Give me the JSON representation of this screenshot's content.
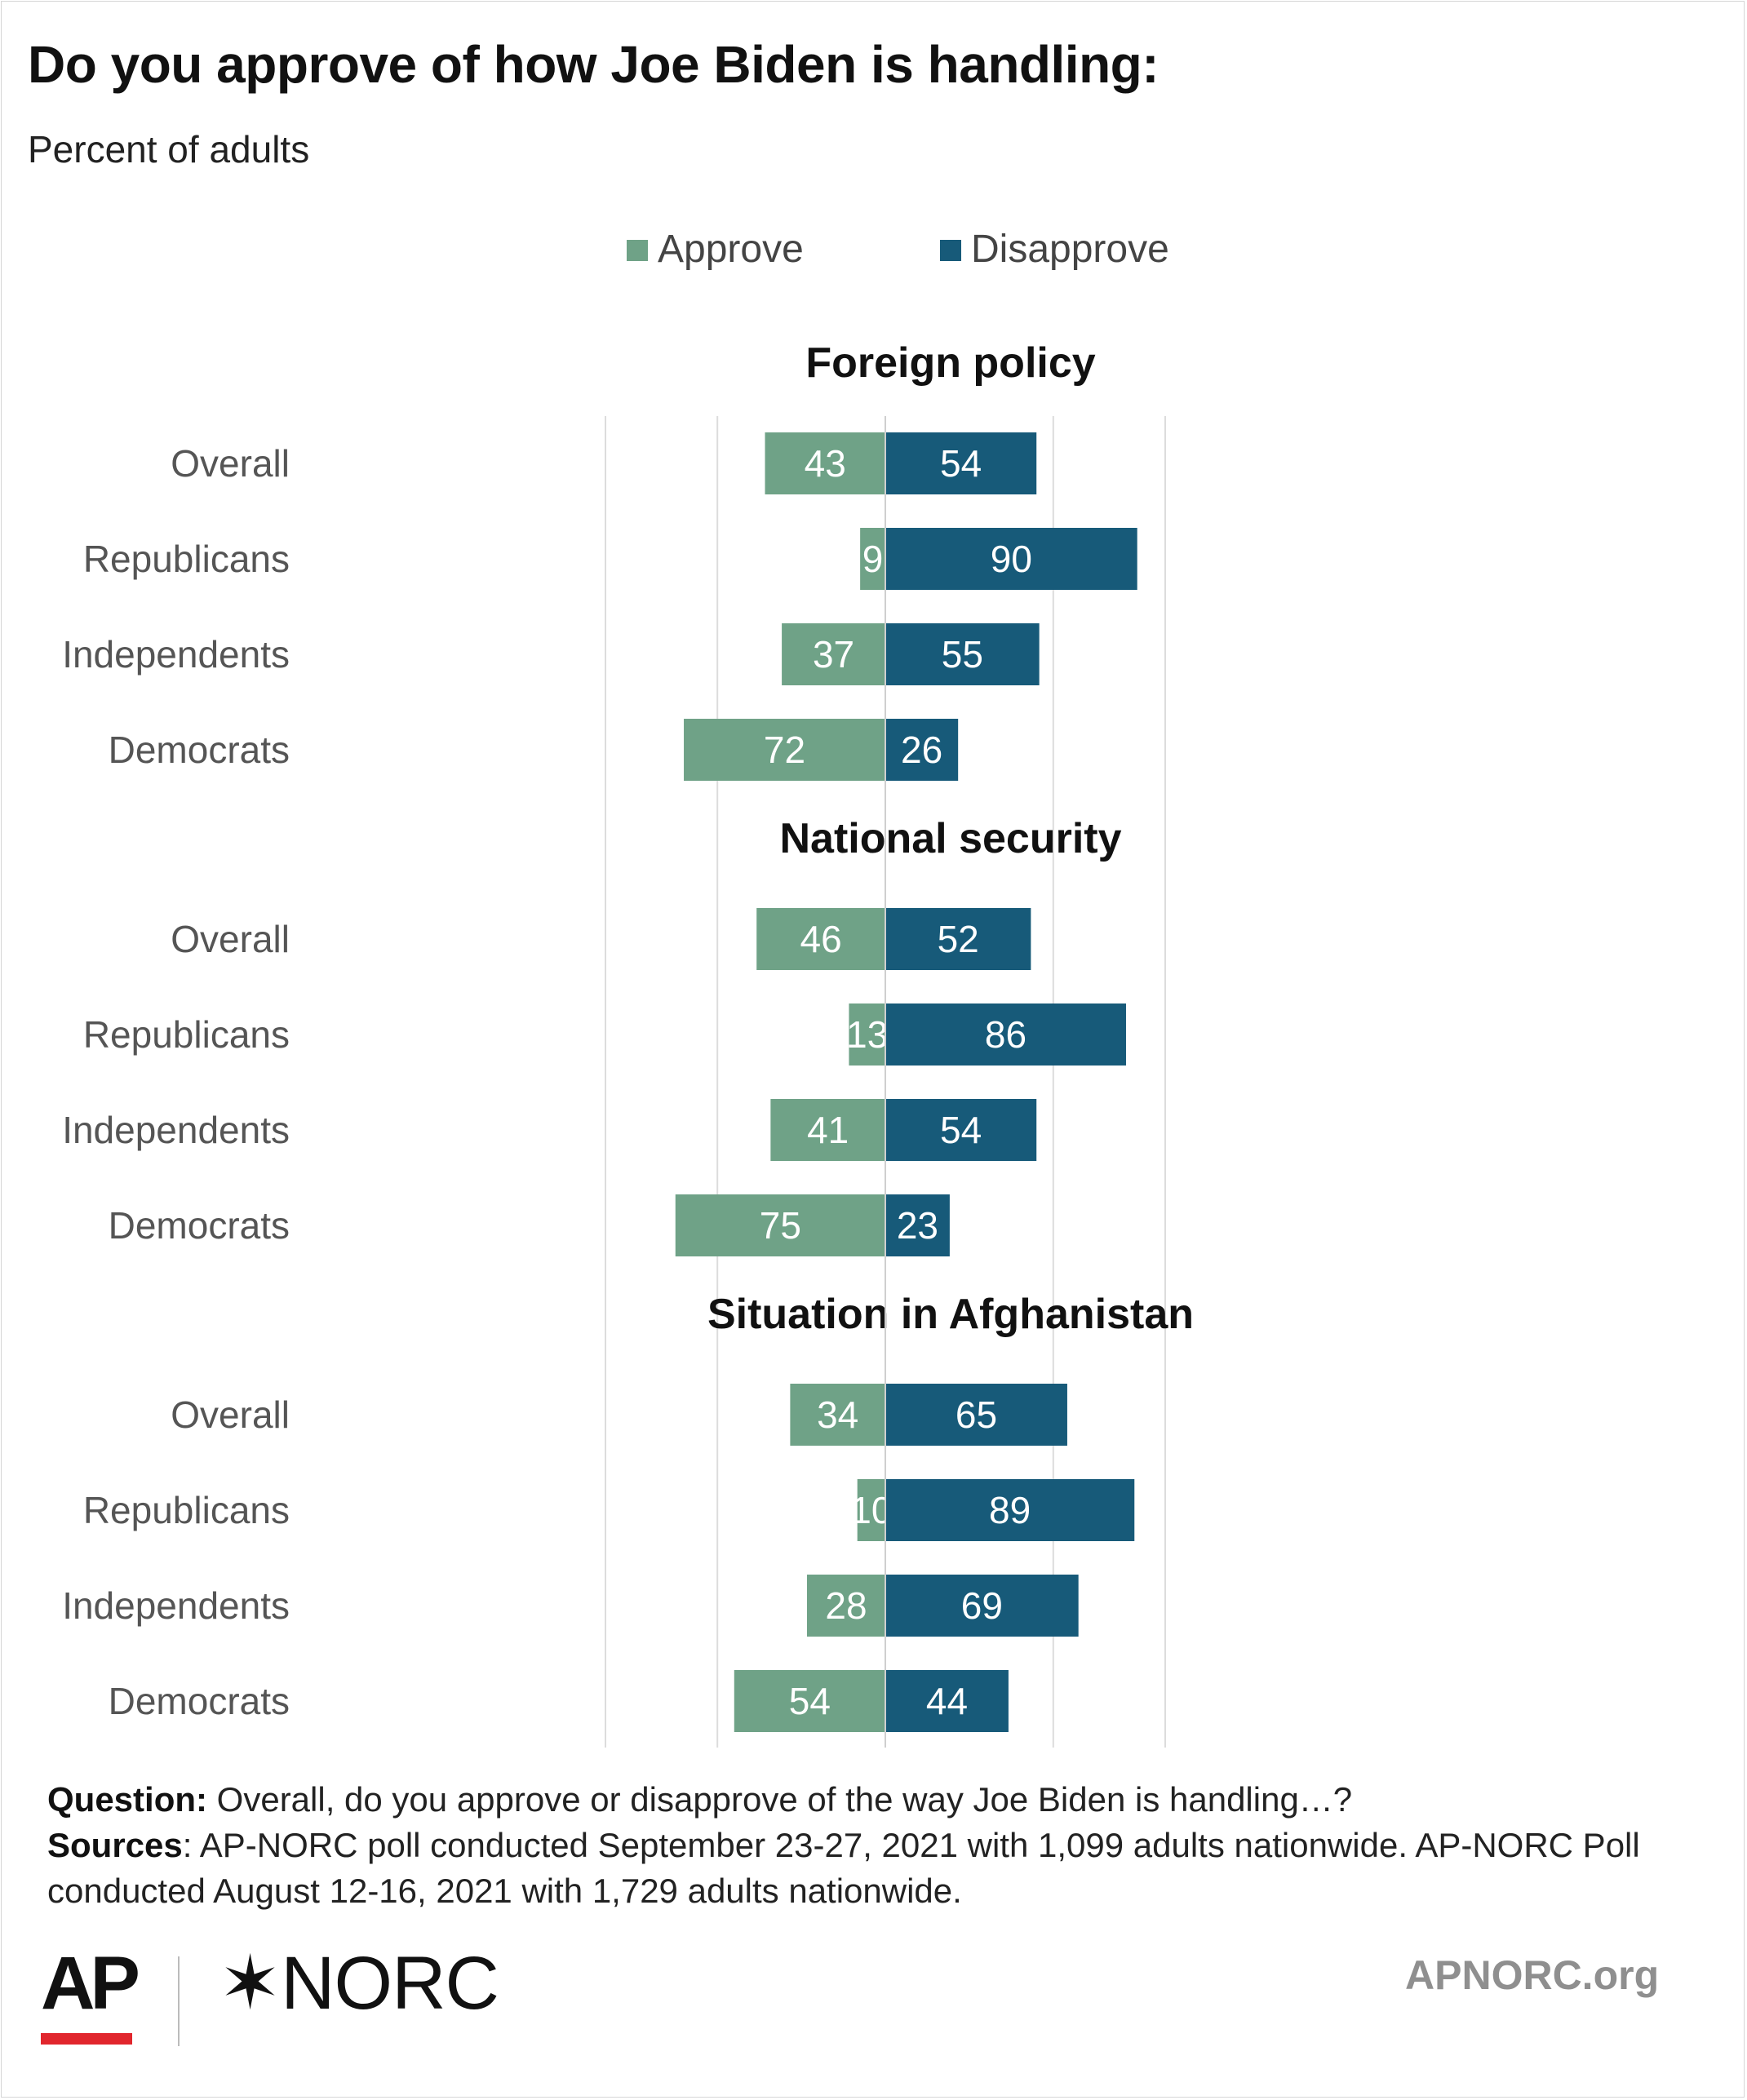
{
  "title": "Do you approve of how Joe Biden is handling:",
  "subtitle": "Percent of adults",
  "colors": {
    "approve": "#6fa287",
    "disapprove": "#175a79",
    "grid": "#dcdcdc",
    "label": "#555555"
  },
  "chart_data": {
    "type": "bar",
    "orientation": "horizontal-diverging",
    "legend": [
      "Approve",
      "Disapprove"
    ],
    "legend_placement": "top",
    "categories": [
      "Overall",
      "Republicans",
      "Independents",
      "Democrats"
    ],
    "x_range": [
      -100,
      100
    ],
    "grid": true,
    "panels": [
      {
        "title": "Foreign policy",
        "series": [
          {
            "name": "Approve",
            "values": [
              43,
              9,
              37,
              72
            ]
          },
          {
            "name": "Disapprove",
            "values": [
              54,
              90,
              55,
              26
            ]
          }
        ]
      },
      {
        "title": "National security",
        "series": [
          {
            "name": "Approve",
            "values": [
              46,
              13,
              41,
              75
            ]
          },
          {
            "name": "Disapprove",
            "values": [
              52,
              86,
              54,
              23
            ]
          }
        ]
      },
      {
        "title": "Situation in Afghanistan",
        "series": [
          {
            "name": "Approve",
            "values": [
              34,
              10,
              28,
              54
            ]
          },
          {
            "name": "Disapprove",
            "values": [
              65,
              89,
              69,
              44
            ]
          }
        ]
      }
    ]
  },
  "footer": {
    "question_label": "Question:",
    "question_text": "Overall, do you approve or disapprove of the way Joe Biden is handling…?",
    "sources_label": "Sources",
    "sources_text": ": AP-NORC poll conducted September 23-27, 2021 with 1,099 adults nationwide. AP-NORC Poll conducted August 12-16, 2021 with 1,729 adults nationwide."
  },
  "logos": {
    "ap": "AP",
    "norc": "✶NORC",
    "site": "APNORC.org"
  }
}
